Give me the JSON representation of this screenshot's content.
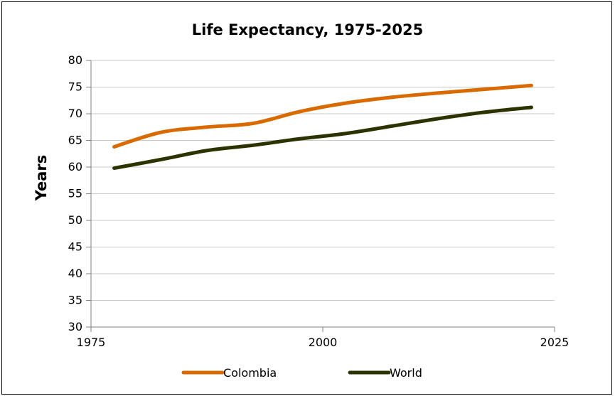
{
  "chart_data": {
    "type": "line",
    "title": "Life Expectancy, 1975-2025",
    "xlabel": "",
    "ylabel": "Years",
    "xlim": [
      1975,
      2025
    ],
    "ylim": [
      30,
      80
    ],
    "x_ticks": [
      1975,
      2000,
      2025
    ],
    "y_ticks": [
      30,
      35,
      40,
      45,
      50,
      55,
      60,
      65,
      70,
      75,
      80
    ],
    "grid": "horizontal",
    "legend_position": "bottom",
    "x": [
      1977.5,
      1982.5,
      1987.5,
      1992.5,
      1997.5,
      2002.5,
      2007.5,
      2012.5,
      2017.5,
      2022.5
    ],
    "series": [
      {
        "name": "Colombia",
        "color": "#d96a00",
        "values": [
          63.8,
          66.5,
          67.5,
          68.2,
          70.4,
          72.0,
          73.1,
          73.9,
          74.6,
          75.3
        ]
      },
      {
        "name": "World",
        "color": "#2d3300",
        "values": [
          59.8,
          61.4,
          63.1,
          64.1,
          65.3,
          66.3,
          67.7,
          69.1,
          70.3,
          71.2
        ]
      }
    ]
  }
}
